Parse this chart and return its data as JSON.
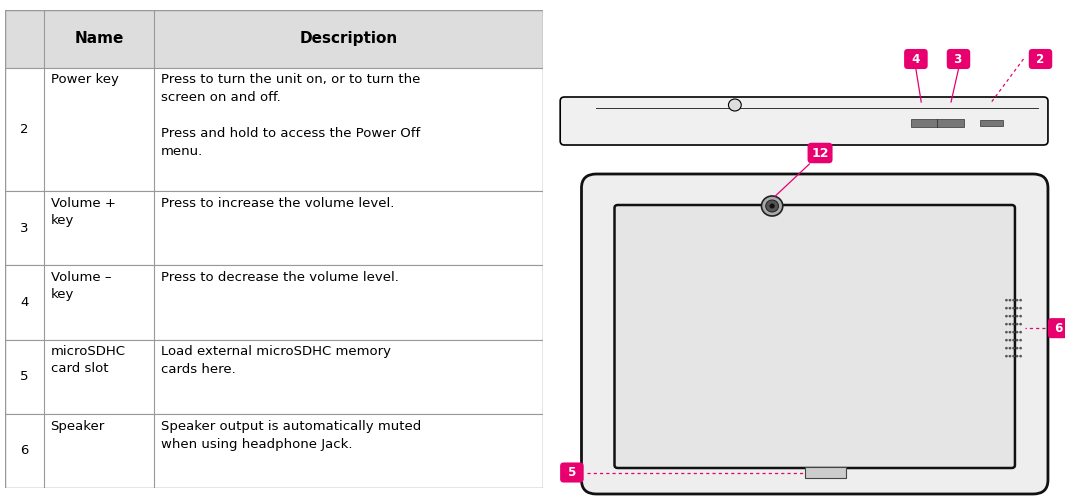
{
  "table": {
    "header": [
      "Name",
      "Description"
    ],
    "rows": [
      {
        "num": "2",
        "name": "Power key",
        "desc": "Press to turn the unit on, or to turn the\nscreen on and off.\n\nPress and hold to access the Power Off\nmenu."
      },
      {
        "num": "3",
        "name": "Volume +\nkey",
        "desc": "Press to increase the volume level."
      },
      {
        "num": "4",
        "name": "Volume –\nkey",
        "desc": "Press to decrease the volume level."
      },
      {
        "num": "5",
        "name": "microSDHC\ncard slot",
        "desc": "Load external microSDHC memory\ncards here."
      },
      {
        "num": "6",
        "name": "Speaker",
        "desc": "Speaker output is automatically muted\nwhen using headphone Jack."
      }
    ],
    "header_bg": "#dddddd",
    "header_font_size": 11,
    "cell_font_size": 9.5,
    "border_color": "#999999"
  },
  "diagram": {
    "label_bg": "#e8006e",
    "label_fg": "#ffffff",
    "label_font_size": 8.5,
    "dashed_color": "#e8006e"
  }
}
